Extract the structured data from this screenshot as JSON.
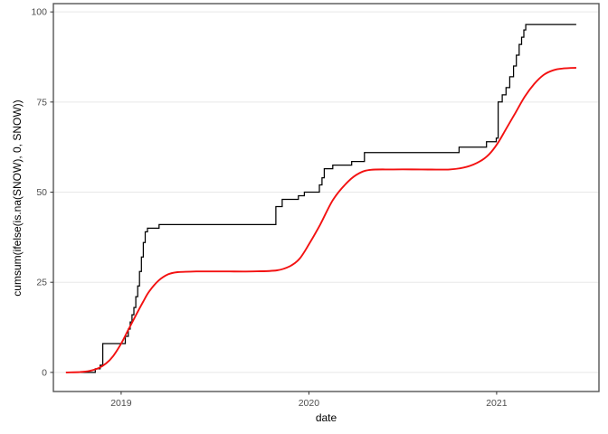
{
  "chart_data": {
    "type": "line",
    "title": "",
    "xlabel": "date",
    "ylabel": "cumsum(ifelse(is.na(SNOW), 0, SNOW))",
    "x_domain": [
      2018.639,
      2021.545
    ],
    "y_domain": [
      -5.3,
      102.3
    ],
    "x_ticks": [
      {
        "value": 2019,
        "label": "2019"
      },
      {
        "value": 2020,
        "label": "2020"
      },
      {
        "value": 2021,
        "label": "2021"
      }
    ],
    "y_ticks": [
      {
        "value": 0,
        "label": "0"
      },
      {
        "value": 25,
        "label": "25"
      },
      {
        "value": 50,
        "label": "50"
      },
      {
        "value": 75,
        "label": "75"
      },
      {
        "value": 100,
        "label": "100"
      }
    ],
    "grid": "horizontal-major-only",
    "legend": "none",
    "series": [
      {
        "name": "cumulative-snow-step",
        "draw": "step-after",
        "color": "#000000",
        "width": 1.25,
        "points": [
          [
            2018.706,
            0
          ],
          [
            2018.862,
            1
          ],
          [
            2018.888,
            2
          ],
          [
            2018.902,
            8
          ],
          [
            2019.022,
            10
          ],
          [
            2019.038,
            12
          ],
          [
            2019.048,
            14
          ],
          [
            2019.058,
            16
          ],
          [
            2019.068,
            18
          ],
          [
            2019.078,
            21
          ],
          [
            2019.088,
            24
          ],
          [
            2019.098,
            28
          ],
          [
            2019.108,
            32
          ],
          [
            2019.118,
            36
          ],
          [
            2019.128,
            39
          ],
          [
            2019.14,
            40
          ],
          [
            2019.202,
            41
          ],
          [
            2019.824,
            46
          ],
          [
            2019.858,
            48
          ],
          [
            2019.944,
            49
          ],
          [
            2019.976,
            50
          ],
          [
            2020.056,
            52
          ],
          [
            2020.07,
            54
          ],
          [
            2020.082,
            56.5
          ],
          [
            2020.127,
            57.5
          ],
          [
            2020.228,
            58.5
          ],
          [
            2020.296,
            61
          ],
          [
            2020.8,
            62.5
          ],
          [
            2020.946,
            64
          ],
          [
            2020.998,
            65
          ],
          [
            2021.008,
            75
          ],
          [
            2021.03,
            77
          ],
          [
            2021.05,
            79
          ],
          [
            2021.07,
            82
          ],
          [
            2021.09,
            85
          ],
          [
            2021.105,
            88
          ],
          [
            2021.12,
            91
          ],
          [
            2021.133,
            93
          ],
          [
            2021.145,
            95
          ],
          [
            2021.155,
            96.5
          ],
          [
            2021.424,
            96.5
          ]
        ]
      },
      {
        "name": "smooth-trend",
        "draw": "smooth",
        "color": "#f31111",
        "width": 1.9,
        "points": [
          [
            2018.706,
            0
          ],
          [
            2018.78,
            0.1
          ],
          [
            2018.83,
            0.4
          ],
          [
            2018.88,
            1.2
          ],
          [
            2018.92,
            2.5
          ],
          [
            2018.957,
            4.5
          ],
          [
            2019.0,
            8
          ],
          [
            2019.04,
            12
          ],
          [
            2019.08,
            16
          ],
          [
            2019.116,
            19.5
          ],
          [
            2019.15,
            22.5
          ],
          [
            2019.2,
            25.5
          ],
          [
            2019.25,
            27.2
          ],
          [
            2019.3,
            27.8
          ],
          [
            2019.4,
            28
          ],
          [
            2019.55,
            28
          ],
          [
            2019.7,
            28
          ],
          [
            2019.83,
            28.3
          ],
          [
            2019.9,
            29.5
          ],
          [
            2019.95,
            31.5
          ],
          [
            2020.0,
            35.5
          ],
          [
            2020.06,
            41
          ],
          [
            2020.13,
            48
          ],
          [
            2020.21,
            53
          ],
          [
            2020.27,
            55.3
          ],
          [
            2020.33,
            56.2
          ],
          [
            2020.45,
            56.3
          ],
          [
            2020.6,
            56.3
          ],
          [
            2020.75,
            56.3
          ],
          [
            2020.84,
            57
          ],
          [
            2020.91,
            58.5
          ],
          [
            2020.96,
            60.5
          ],
          [
            2021.005,
            63.5
          ],
          [
            2021.05,
            67.5
          ],
          [
            2021.1,
            72
          ],
          [
            2021.15,
            76.5
          ],
          [
            2021.2,
            80
          ],
          [
            2021.25,
            82.5
          ],
          [
            2021.3,
            83.8
          ],
          [
            2021.35,
            84.3
          ],
          [
            2021.424,
            84.5
          ]
        ]
      }
    ],
    "colors": {
      "step_line": "#000000",
      "smooth_line": "#f31111",
      "grid": "#e8e8e8",
      "panel_border": "#555555",
      "tick": "#333333",
      "tick_label": "#4d4d4d",
      "axis_title": "#000000",
      "background": "#ffffff"
    }
  }
}
